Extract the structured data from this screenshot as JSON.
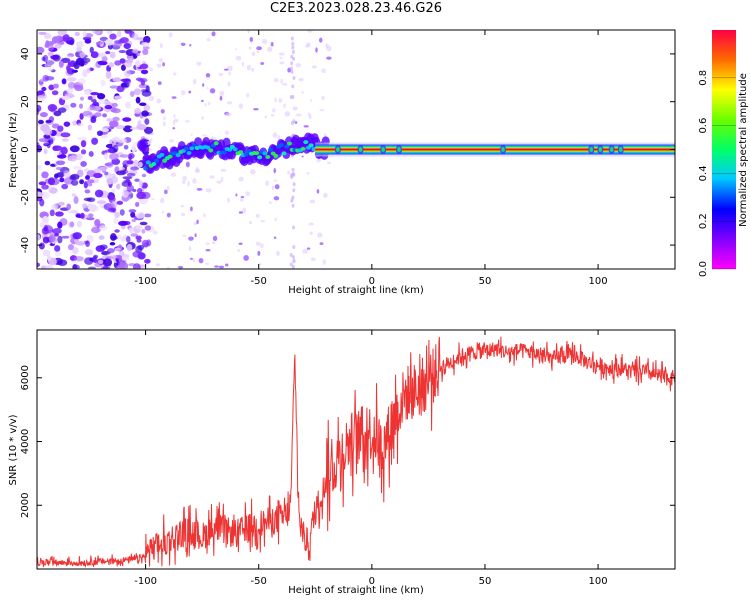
{
  "title": "C2E3.2023.028.23.46.G26",
  "chart_data": [
    {
      "type": "heatmap",
      "title": "C2E3.2023.028.23.46.G26",
      "xlabel": "Height of straight line (km)",
      "ylabel": "Frequency (Hz)",
      "xlim": [
        -148,
        134
      ],
      "ylim": [
        -50,
        50
      ],
      "x_ticks": [
        -100,
        -50,
        0,
        50,
        100
      ],
      "y_ticks": [
        -40,
        -20,
        0,
        20,
        40
      ],
      "colorbar": {
        "label": "Normalized spectral amplitude",
        "range": [
          0,
          1
        ],
        "ticks": [
          0.0,
          0.2,
          0.4,
          0.6,
          0.8
        ],
        "colormap": "rainbow (magenta-blue-cyan-green-yellow-red)"
      },
      "ridge": [
        {
          "x": -100,
          "y": -6
        },
        {
          "x": -90,
          "y": -3
        },
        {
          "x": -80,
          "y": 0
        },
        {
          "x": -70,
          "y": 1
        },
        {
          "x": -60,
          "y": -1
        },
        {
          "x": -50,
          "y": -3
        },
        {
          "x": -40,
          "y": 0
        },
        {
          "x": -30,
          "y": 2
        },
        {
          "x": -20,
          "y": 1
        },
        {
          "x": 0,
          "y": 0
        },
        {
          "x": 50,
          "y": 0
        },
        {
          "x": 100,
          "y": 0
        },
        {
          "x": 134,
          "y": 0
        }
      ],
      "noise_region_x": [
        -148,
        -98
      ]
    },
    {
      "type": "line",
      "xlabel": "Height of straight line (km)",
      "ylabel": "SNR (10 * v/v)",
      "xlim": [
        -148,
        134
      ],
      "ylim": [
        0,
        7500
      ],
      "x_ticks": [
        -100,
        -50,
        0,
        50,
        100
      ],
      "y_ticks": [
        2000,
        4000,
        6000
      ],
      "color": "#ee3333",
      "x": [
        -148,
        -130,
        -115,
        -105,
        -100,
        -95,
        -90,
        -85,
        -80,
        -75,
        -70,
        -65,
        -60,
        -55,
        -50,
        -45,
        -40,
        -36,
        -34,
        -33,
        -32,
        -30,
        -28,
        -25,
        -20,
        -15,
        -10,
        -5,
        0,
        5,
        10,
        15,
        20,
        25,
        30,
        35,
        40,
        45,
        50,
        55,
        60,
        65,
        70,
        75,
        80,
        85,
        90,
        95,
        100,
        105,
        110,
        115,
        120,
        125,
        130,
        134
      ],
      "y": [
        200,
        200,
        250,
        300,
        400,
        700,
        900,
        1100,
        1200,
        1000,
        1300,
        1200,
        1100,
        1300,
        1400,
        1500,
        1600,
        1800,
        6700,
        3500,
        1500,
        1000,
        800,
        1800,
        2800,
        3500,
        4000,
        4200,
        4300,
        3800,
        4800,
        5500,
        5600,
        5900,
        6300,
        6500,
        6700,
        6800,
        6850,
        6900,
        6800,
        6850,
        6800,
        6700,
        6600,
        6700,
        6700,
        6500,
        6400,
        6300,
        6300,
        6200,
        6200,
        6100,
        6000,
        6000
      ]
    }
  ]
}
